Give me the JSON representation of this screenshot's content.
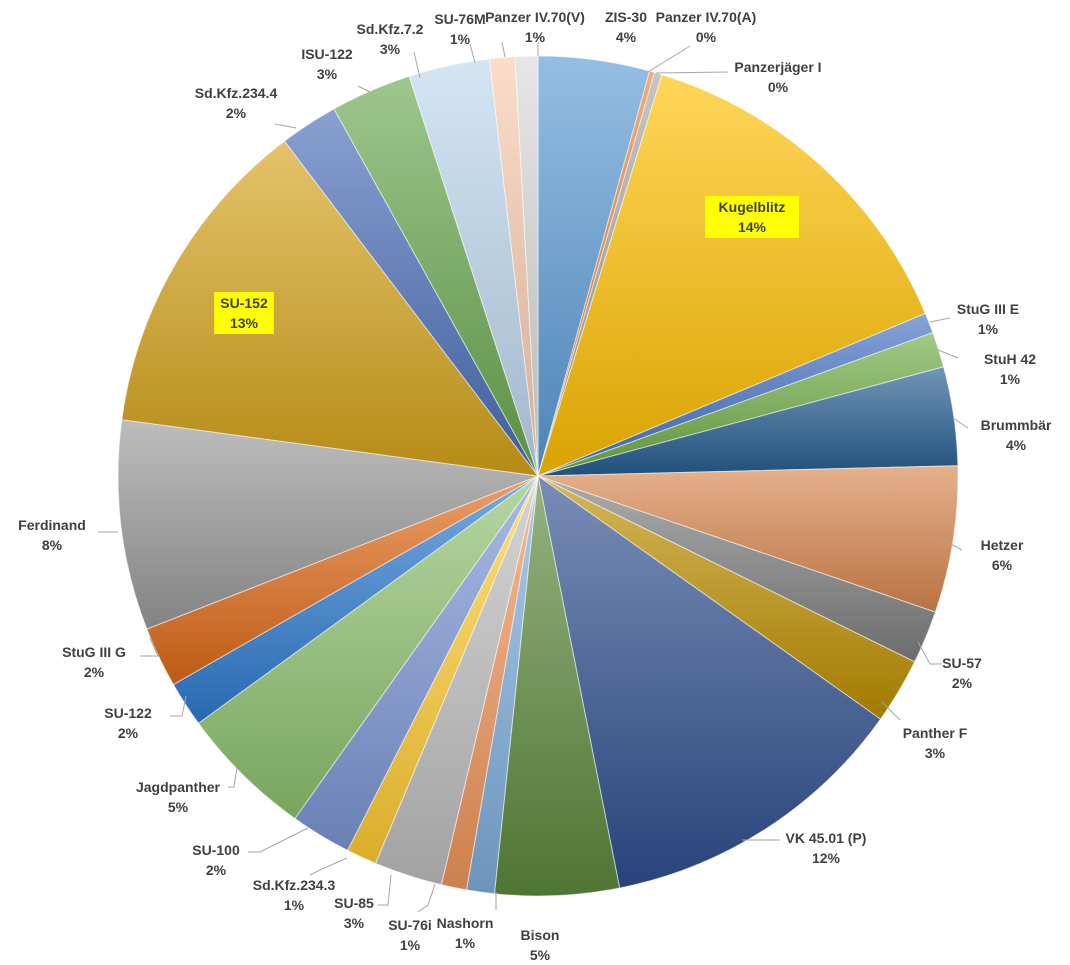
{
  "chart_data": {
    "type": "pie",
    "title": "",
    "slices": [
      {
        "label": "ZIS-30",
        "value": 4.4,
        "pct": "4%",
        "color": "#5b9bd5"
      },
      {
        "label": "Panzer IV.70(A)",
        "value": 0.2,
        "pct": "0%",
        "color": "#ed7d31"
      },
      {
        "label": "Panzerjäger I",
        "value": 0.3,
        "pct": "0%",
        "color": "#a5a5a5"
      },
      {
        "label": "Kugelblitz",
        "value": 14.3,
        "pct": "14%",
        "color": "#ffc000",
        "highlight": true
      },
      {
        "label": "StuG III E",
        "value": 0.8,
        "pct": "1%",
        "color": "#4472c4"
      },
      {
        "label": "StuH 42",
        "value": 1.4,
        "pct": "1%",
        "color": "#70ad47"
      },
      {
        "label": "Brummbär",
        "value": 3.9,
        "pct": "4%",
        "color": "#255e91"
      },
      {
        "label": "Hetzer",
        "value": 5.8,
        "pct": "6%",
        "color": "#d9874e"
      },
      {
        "label": "SU-57",
        "value": 2.1,
        "pct": "2%",
        "color": "#7f7f7f"
      },
      {
        "label": "Panther F",
        "value": 2.6,
        "pct": "3%",
        "color": "#bf9000"
      },
      {
        "label": "VK 45.01 (P)",
        "value": 12.4,
        "pct": "12%",
        "color": "#2f4f8f"
      },
      {
        "label": "Bison",
        "value": 4.9,
        "pct": "5%",
        "color": "#5c8a3c"
      },
      {
        "label": "Nashorn",
        "value": 1.1,
        "pct": "1%",
        "color": "#7faedd"
      },
      {
        "label": "SU-76i",
        "value": 1.0,
        "pct": "1%",
        "color": "#f1975a"
      },
      {
        "label": "SU-85",
        "value": 2.7,
        "pct": "3%",
        "color": "#bfbfbf"
      },
      {
        "label": "Sd.Kfz.234.3",
        "value": 1.2,
        "pct": "1%",
        "color": "#ffcd33"
      },
      {
        "label": "SU-100",
        "value": 2.4,
        "pct": "2%",
        "color": "#7b96d6"
      },
      {
        "label": "Jagdpanther",
        "value": 5.3,
        "pct": "5%",
        "color": "#8dc26f"
      },
      {
        "label": "SU-122",
        "value": 1.8,
        "pct": "2%",
        "color": "#2e7bd0"
      },
      {
        "label": "StuG III G",
        "value": 2.4,
        "pct": "2%",
        "color": "#e06a18"
      },
      {
        "label": "Ferdinand",
        "value": 8.3,
        "pct": "8%",
        "color": "#9a9a9a"
      },
      {
        "label": "SU-152",
        "value": 12.9,
        "pct": "13%",
        "color": "#d6a31a",
        "highlight": true
      },
      {
        "label": "Sd.Kfz.234.4",
        "value": 2.3,
        "pct": "2%",
        "color": "#4a6db8"
      },
      {
        "label": "ISU-122",
        "value": 3.2,
        "pct": "3%",
        "color": "#6aa84f"
      },
      {
        "label": "Sd.Kfz.7.2",
        "value": 3.2,
        "pct": "3%",
        "color": "#bdd7ee"
      },
      {
        "label": "SU-76M",
        "value": 1.0,
        "pct": "1%",
        "color": "#f8cbad"
      },
      {
        "label": "Panzer IV.70(V)",
        "value": 0.9,
        "pct": "1%",
        "color": "#d9d9d9"
      }
    ]
  }
}
